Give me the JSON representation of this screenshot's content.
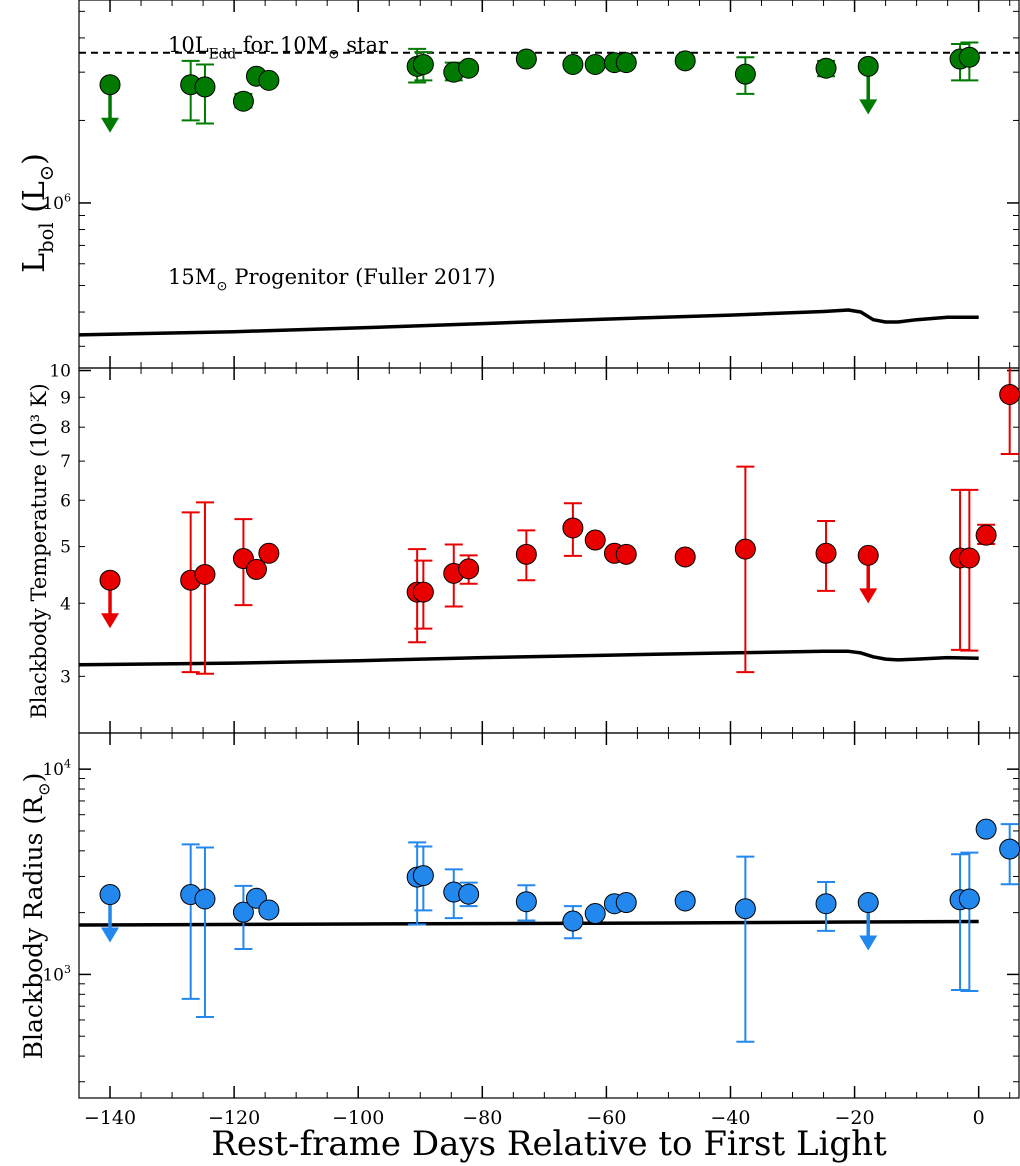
{
  "xlabel": "Rest-frame Days Relative to First Light",
  "x_ticks": [
    {
      "value": -140,
      "label": "−140"
    },
    {
      "value": -120,
      "label": "−120"
    },
    {
      "value": -100,
      "label": "−100"
    },
    {
      "value": -80,
      "label": "−80"
    },
    {
      "value": -60,
      "label": "−60"
    },
    {
      "value": -40,
      "label": "−40"
    },
    {
      "value": -20,
      "label": "−20"
    },
    {
      "value": 0,
      "label": "0"
    }
  ],
  "chart_data": [
    {
      "type": "scatter",
      "ylabel": "L_bol (L_⊙)",
      "yscale": "log",
      "xlim": [
        -145,
        6.5
      ],
      "ylim": [
        250000,
        5500000
      ],
      "color": "#007a00",
      "y_ticks": [
        {
          "value": 1000000,
          "label": "10^6"
        }
      ],
      "hline": {
        "y": 3530000,
        "label": "10L_Edd for 10M_⊙ star"
      },
      "model": {
        "label": "15M_⊙ Progenitor (Fuller 2017)",
        "x": [
          -145,
          -120,
          -100,
          -80,
          -60,
          -40,
          -25,
          -21,
          -19,
          -17,
          -15,
          -13,
          -10,
          -5,
          0
        ],
        "y": [
          330000,
          339000,
          350000,
          363000,
          377000,
          390000,
          402000,
          407000,
          400000,
          375000,
          368000,
          368000,
          375000,
          383000,
          383000
        ]
      },
      "points": [
        {
          "x": -140.0,
          "y": 2700000,
          "upper_limit": true
        },
        {
          "x": -127.0,
          "y": 2700000,
          "err_lo": 2000000,
          "err_hi": 3300000
        },
        {
          "x": -124.7,
          "y": 2650000,
          "err_lo": 1950000,
          "err_hi": 3200000
        },
        {
          "x": -118.5,
          "y": 2350000,
          "err_lo": 2230000,
          "err_hi": 2500000
        },
        {
          "x": -116.4,
          "y": 2900000
        },
        {
          "x": -114.4,
          "y": 2800000
        },
        {
          "x": -90.5,
          "y": 3150000,
          "err_lo": 2750000,
          "err_hi": 3650000
        },
        {
          "x": -89.5,
          "y": 3200000,
          "err_lo": 2800000,
          "err_hi": 3550000
        },
        {
          "x": -84.6,
          "y": 3000000,
          "err_lo": 2800000,
          "err_hi": 3250000
        },
        {
          "x": -82.2,
          "y": 3100000
        },
        {
          "x": -72.9,
          "y": 3350000
        },
        {
          "x": -65.4,
          "y": 3200000
        },
        {
          "x": -61.8,
          "y": 3200000
        },
        {
          "x": -58.7,
          "y": 3250000
        },
        {
          "x": -56.8,
          "y": 3250000
        },
        {
          "x": -47.3,
          "y": 3300000
        },
        {
          "x": -37.6,
          "y": 2950000,
          "err_lo": 2500000,
          "err_hi": 3400000
        },
        {
          "x": -24.6,
          "y": 3100000,
          "err_lo": 2900000,
          "err_hi": 3300000
        },
        {
          "x": -17.8,
          "y": 3150000,
          "upper_limit": true
        },
        {
          "x": -3.0,
          "y": 3350000,
          "err_lo": 2800000,
          "err_hi": 3800000
        },
        {
          "x": -1.5,
          "y": 3400000,
          "err_lo": 2800000,
          "err_hi": 3850000
        }
      ]
    },
    {
      "type": "scatter",
      "ylabel": "Blackbody Temperature (10³ K)",
      "yscale": "log",
      "xlim": [
        -145,
        6.5
      ],
      "ylim": [
        2.4,
        10.1
      ],
      "color": "#e80000",
      "y_ticks": [
        {
          "value": 3,
          "label": "3"
        },
        {
          "value": 4,
          "label": "4"
        },
        {
          "value": 5,
          "label": "5"
        },
        {
          "value": 6,
          "label": "6"
        },
        {
          "value": 7,
          "label": "7"
        },
        {
          "value": 8,
          "label": "8"
        },
        {
          "value": 9,
          "label": "9"
        },
        {
          "value": 10,
          "label": "10"
        }
      ],
      "model": {
        "x": [
          -145,
          -120,
          -100,
          -80,
          -60,
          -40,
          -25,
          -21,
          -19,
          -17,
          -15,
          -13,
          -10,
          -5,
          0
        ],
        "y": [
          3.14,
          3.16,
          3.19,
          3.23,
          3.26,
          3.29,
          3.31,
          3.31,
          3.29,
          3.24,
          3.21,
          3.2,
          3.21,
          3.23,
          3.22
        ]
      },
      "points": [
        {
          "x": -140.0,
          "y": 4.38,
          "upper_limit": true
        },
        {
          "x": -127.0,
          "y": 4.38,
          "err_lo": 3.05,
          "err_hi": 5.72
        },
        {
          "x": -124.7,
          "y": 4.48,
          "err_lo": 3.03,
          "err_hi": 5.95
        },
        {
          "x": -118.5,
          "y": 4.77,
          "err_lo": 3.97,
          "err_hi": 5.57
        },
        {
          "x": -116.4,
          "y": 4.57
        },
        {
          "x": -114.4,
          "y": 4.87
        },
        {
          "x": -90.5,
          "y": 4.18,
          "err_lo": 3.43,
          "err_hi": 4.95
        },
        {
          "x": -89.5,
          "y": 4.18,
          "err_lo": 3.62,
          "err_hi": 4.73
        },
        {
          "x": -84.6,
          "y": 4.5,
          "err_lo": 3.95,
          "err_hi": 5.04
        },
        {
          "x": -82.2,
          "y": 4.58,
          "err_lo": 4.32,
          "err_hi": 4.83
        },
        {
          "x": -72.9,
          "y": 4.85,
          "err_lo": 4.38,
          "err_hi": 5.33
        },
        {
          "x": -65.4,
          "y": 5.38,
          "err_lo": 4.82,
          "err_hi": 5.93
        },
        {
          "x": -61.8,
          "y": 5.13
        },
        {
          "x": -58.7,
          "y": 4.87
        },
        {
          "x": -56.8,
          "y": 4.85
        },
        {
          "x": -47.3,
          "y": 4.8,
          "err_lo": 4.7,
          "err_hi": 4.9
        },
        {
          "x": -37.6,
          "y": 4.95,
          "err_lo": 3.05,
          "err_hi": 6.85
        },
        {
          "x": -24.6,
          "y": 4.87,
          "err_lo": 4.2,
          "err_hi": 5.53
        },
        {
          "x": -17.8,
          "y": 4.83,
          "upper_limit": true
        },
        {
          "x": -3.0,
          "y": 4.78,
          "err_lo": 3.33,
          "err_hi": 6.25
        },
        {
          "x": -1.5,
          "y": 4.78,
          "err_lo": 3.32,
          "err_hi": 6.25
        },
        {
          "x": 1.2,
          "y": 5.23,
          "err_lo": 5.05,
          "err_hi": 5.45
        },
        {
          "x": 5.0,
          "y": 9.1,
          "err_lo": 7.2,
          "err_hi": 10.4
        }
      ]
    },
    {
      "type": "scatter",
      "ylabel": "Blackbody Radius (R_⊙)",
      "yscale": "log",
      "xlim": [
        -145,
        6.5
      ],
      "ylim": [
        250,
        15000
      ],
      "color": "#2288ee",
      "y_ticks": [
        {
          "value": 1000,
          "label": "10^3"
        },
        {
          "value": 10000,
          "label": "10^4"
        }
      ],
      "model": {
        "x": [
          -145,
          -100,
          -50,
          -20,
          0
        ],
        "y": [
          1740,
          1760,
          1780,
          1800,
          1810
        ]
      },
      "points": [
        {
          "x": -140.0,
          "y": 2450,
          "upper_limit": true
        },
        {
          "x": -127.0,
          "y": 2450,
          "err_lo": 760,
          "err_hi": 4300
        },
        {
          "x": -124.7,
          "y": 2330,
          "err_lo": 620,
          "err_hi": 4150
        },
        {
          "x": -118.5,
          "y": 2010,
          "err_lo": 1330,
          "err_hi": 2700
        },
        {
          "x": -116.4,
          "y": 2350
        },
        {
          "x": -114.4,
          "y": 2060
        },
        {
          "x": -90.5,
          "y": 2980,
          "err_lo": 1750,
          "err_hi": 4400
        },
        {
          "x": -89.5,
          "y": 3030,
          "err_lo": 2050,
          "err_hi": 4200
        },
        {
          "x": -84.6,
          "y": 2520,
          "err_lo": 1880,
          "err_hi": 3250
        },
        {
          "x": -82.2,
          "y": 2460,
          "err_lo": 2150,
          "err_hi": 2800
        },
        {
          "x": -72.9,
          "y": 2260,
          "err_lo": 1830,
          "err_hi": 2720
        },
        {
          "x": -65.4,
          "y": 1820,
          "err_lo": 1500,
          "err_hi": 2150
        },
        {
          "x": -61.8,
          "y": 1980
        },
        {
          "x": -58.7,
          "y": 2210
        },
        {
          "x": -56.8,
          "y": 2240
        },
        {
          "x": -47.3,
          "y": 2280,
          "err_lo": 2180,
          "err_hi": 2380
        },
        {
          "x": -37.6,
          "y": 2090,
          "err_lo": 470,
          "err_hi": 3750
        },
        {
          "x": -24.6,
          "y": 2210,
          "err_lo": 1630,
          "err_hi": 2820
        },
        {
          "x": -17.8,
          "y": 2240,
          "upper_limit": true
        },
        {
          "x": -3.0,
          "y": 2310,
          "err_lo": 840,
          "err_hi": 3850
        },
        {
          "x": -1.5,
          "y": 2330,
          "err_lo": 830,
          "err_hi": 3920
        },
        {
          "x": 1.2,
          "y": 5100,
          "err_lo": 4850,
          "err_hi": 5350
        },
        {
          "x": 5.0,
          "y": 4080,
          "err_lo": 2750,
          "err_hi": 5400
        }
      ]
    }
  ]
}
